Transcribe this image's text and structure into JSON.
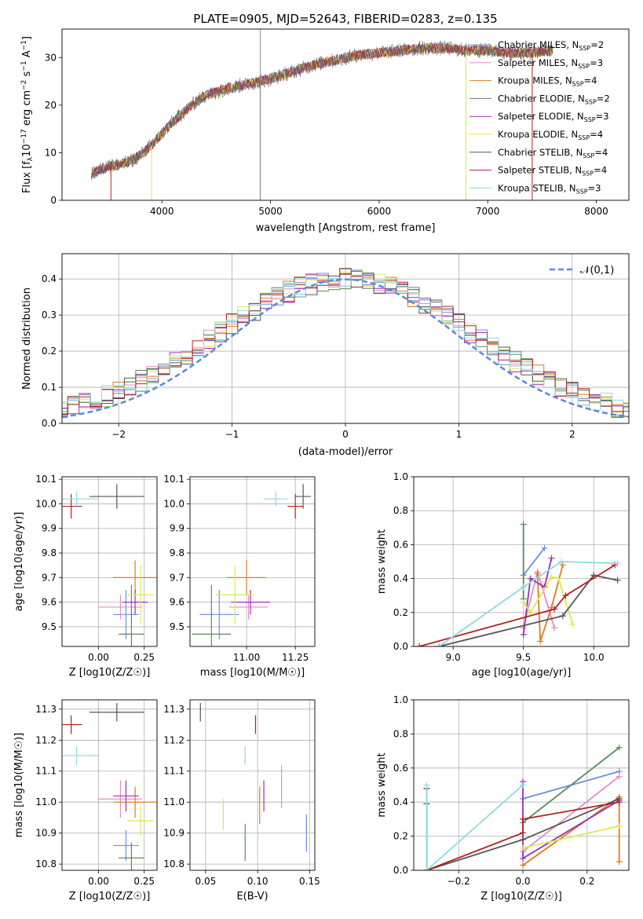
{
  "figure_title": "PLATE=0905, MJD=52643, FIBERID=0283, z=0.135",
  "colors": {
    "chab_miles": "#6a8fe0",
    "salp_miles": "#e58bc7",
    "krou_miles": "#e07b1a",
    "chab_elodie": "#5a8a5a",
    "salp_elodie": "#9c2fb5",
    "krou_elodie": "#d7ea53",
    "chab_stelib": "#555555",
    "salp_stelib": "#b22222",
    "krou_stelib": "#8ddbe3",
    "gauss": "#5b8bd6"
  },
  "chart_data": [
    {
      "id": "spectrum",
      "type": "line",
      "title": "PLATE=0905, MJD=52643, FIBERID=0283, z=0.135",
      "xlabel": "wavelength [Angstrom, rest frame]",
      "ylabel": "Flux [f_λ 10^-17 erg cm^-2 s^-1 A^-1]",
      "xlim": [
        3080,
        8300
      ],
      "ylim": [
        0,
        36
      ],
      "xticks": [
        4000,
        5000,
        6000,
        7000,
        8000
      ],
      "yticks": [
        0,
        10,
        20,
        30
      ],
      "continuum": {
        "x": [
          3350,
          3500,
          3600,
          3700,
          3800,
          3900,
          4000,
          4100,
          4200,
          4300,
          4400,
          4600,
          4800,
          5000,
          5200,
          5400,
          5600,
          5800,
          6000,
          6200,
          6400,
          6600,
          6800,
          7000,
          7200,
          7400,
          7600
        ],
        "y": [
          5.5,
          7.2,
          7.5,
          8.0,
          9.5,
          11.5,
          14.0,
          16.5,
          18.5,
          20.5,
          22.0,
          23.5,
          24.5,
          25.5,
          27.0,
          28.5,
          29.5,
          30.5,
          31.0,
          31.5,
          32.0,
          32.0,
          31.5,
          31.5,
          31.0,
          31.0,
          31.5
        ]
      },
      "legend": [
        "Chabrier MILES, N_SSP=2",
        "Salpeter MILES, N_SSP=3",
        "Kroupa MILES, N_SSP=4",
        "Chabrier ELODIE, N_SSP=2",
        "Salpeter ELODIE, N_SSP=3",
        "Kroupa ELODIE, N_SSP=4",
        "Chabrier STELIB, N_SSP=4",
        "Salpeter STELIB, N_SSP=4",
        "Kroupa STELIB, N_SSP=3"
      ],
      "legend_position": "upper-right"
    },
    {
      "id": "residuals",
      "type": "histogram",
      "xlabel": "(data-model)/error",
      "ylabel": "Normed distribution",
      "xlim": [
        -2.5,
        2.5
      ],
      "ylim": [
        0,
        0.47
      ],
      "xticks": [
        -2,
        -1,
        0,
        1,
        2
      ],
      "yticks": [
        0.0,
        0.1,
        0.2,
        0.3,
        0.4
      ],
      "grid": true,
      "gaussian_label": "𝒩(0,1)",
      "legend_position": "upper-right"
    },
    {
      "id": "age_vs_Z",
      "type": "errorbar",
      "xlabel": "Z [log10(Z/Z☉)]",
      "ylabel": "age [log10(age/yr)]",
      "xlim": [
        -0.2,
        0.32
      ],
      "ylim": [
        9.42,
        10.11
      ],
      "xticks": [
        0.0,
        0.25
      ],
      "yticks": [
        9.5,
        9.6,
        9.7,
        9.8,
        9.9,
        10.0,
        10.1
      ],
      "points": [
        {
          "m": "chab_miles",
          "x": 0.15,
          "y": 9.55,
          "ex": 0.07,
          "ey": 0.1
        },
        {
          "m": "salp_miles",
          "x": 0.12,
          "y": 9.58,
          "ex": 0.12,
          "ey": 0.05
        },
        {
          "m": "krou_miles",
          "x": 0.2,
          "y": 9.7,
          "ex": 0.12,
          "ey": 0.07
        },
        {
          "m": "chab_elodie",
          "x": 0.18,
          "y": 9.47,
          "ex": 0.07,
          "ey": 0.2
        },
        {
          "m": "salp_elodie",
          "x": 0.2,
          "y": 9.6,
          "ex": 0.07,
          "ey": 0.05
        },
        {
          "m": "krou_elodie",
          "x": 0.23,
          "y": 9.63,
          "ex": 0.07,
          "ey": 0.12
        },
        {
          "m": "chab_stelib",
          "x": 0.1,
          "y": 10.03,
          "ex": 0.15,
          "ey": 0.05
        },
        {
          "m": "salp_stelib",
          "x": -0.15,
          "y": 9.99,
          "ex": 0.06,
          "ey": 0.05
        },
        {
          "m": "krou_stelib",
          "x": -0.12,
          "y": 10.02,
          "ex": 0.12,
          "ey": 0.03
        }
      ]
    },
    {
      "id": "age_vs_mass",
      "type": "errorbar",
      "xlabel": "mass [log10(M/M☉)]",
      "xlim": [
        10.71,
        11.35
      ],
      "ylim": [
        9.42,
        10.11
      ],
      "xticks": [
        11.0,
        11.25
      ],
      "yticks": [
        9.5,
        9.6,
        9.7,
        9.8,
        9.9,
        10.0,
        10.1
      ],
      "points": [
        {
          "m": "chab_miles",
          "x": 10.86,
          "y": 9.55,
          "ex": 0.1,
          "ey": 0.1
        },
        {
          "m": "salp_miles",
          "x": 11.01,
          "y": 9.58,
          "ex": 0.1,
          "ey": 0.05
        },
        {
          "m": "krou_miles",
          "x": 11.0,
          "y": 9.7,
          "ex": 0.1,
          "ey": 0.07
        },
        {
          "m": "chab_elodie",
          "x": 10.82,
          "y": 9.47,
          "ex": 0.1,
          "ey": 0.2
        },
        {
          "m": "salp_elodie",
          "x": 11.02,
          "y": 9.6,
          "ex": 0.1,
          "ey": 0.05
        },
        {
          "m": "krou_elodie",
          "x": 10.94,
          "y": 9.63,
          "ex": 0.1,
          "ey": 0.12
        },
        {
          "m": "chab_stelib",
          "x": 11.29,
          "y": 10.03,
          "ex": 0.04,
          "ey": 0.05
        },
        {
          "m": "salp_stelib",
          "x": 11.25,
          "y": 9.99,
          "ex": 0.04,
          "ey": 0.05
        },
        {
          "m": "krou_stelib",
          "x": 11.15,
          "y": 10.02,
          "ex": 0.06,
          "ey": 0.03
        }
      ]
    },
    {
      "id": "weight_vs_age",
      "type": "line",
      "xlabel": "age [log10(age/yr)]",
      "ylabel": "mass weight",
      "xlim": [
        8.72,
        10.25
      ],
      "ylim": [
        0,
        1.0
      ],
      "xticks": [
        9.0,
        9.5,
        10.0
      ],
      "yticks": [
        0.0,
        0.2,
        0.4,
        0.6,
        0.8,
        1.0
      ],
      "series": [
        {
          "m": "chab_miles",
          "x": [
            9.5,
            9.65
          ],
          "y": [
            0.42,
            0.58
          ]
        },
        {
          "m": "salp_miles",
          "x": [
            9.5,
            9.6,
            9.72
          ],
          "y": [
            0.11,
            0.44,
            0.11
          ]
        },
        {
          "m": "krou_miles",
          "x": [
            9.6,
            9.62,
            9.7,
            9.78
          ],
          "y": [
            0.43,
            0.03,
            0.23,
            0.48
          ]
        },
        {
          "m": "chab_elodie",
          "x": [
            9.5,
            9.5
          ],
          "y": [
            0.28,
            0.72
          ]
        },
        {
          "m": "salp_elodie",
          "x": [
            9.5,
            9.55,
            9.65,
            9.7
          ],
          "y": [
            0.07,
            0.4,
            0.35,
            0.52
          ]
        },
        {
          "m": "krou_elodie",
          "x": [
            9.5,
            9.55,
            9.7,
            9.75,
            9.85
          ],
          "y": [
            0.26,
            0.2,
            0.41,
            0.4,
            0.13
          ]
        },
        {
          "m": "chab_stelib",
          "x": [
            8.9,
            9.78,
            10.0,
            10.17
          ],
          "y": [
            0.0,
            0.18,
            0.42,
            0.39
          ]
        },
        {
          "m": "salp_stelib",
          "x": [
            8.76,
            9.72,
            9.8,
            10.15
          ],
          "y": [
            0.0,
            0.22,
            0.3,
            0.48
          ]
        },
        {
          "m": "krou_stelib",
          "x": [
            8.9,
            9.5,
            9.77,
            10.17
          ],
          "y": [
            0.0,
            0.35,
            0.5,
            0.49
          ]
        }
      ]
    },
    {
      "id": "mass_vs_Z",
      "type": "errorbar",
      "xlabel": "Z [log10(Z/Z☉)]",
      "ylabel": "mass [log10(M/M☉)]",
      "xlim": [
        -0.2,
        0.32
      ],
      "ylim": [
        10.78,
        11.33
      ],
      "xticks": [
        0.0,
        0.25
      ],
      "yticks": [
        10.8,
        10.9,
        11.0,
        11.1,
        11.2,
        11.3
      ],
      "points": [
        {
          "m": "chab_miles",
          "x": 0.15,
          "y": 10.86,
          "ex": 0.07,
          "ey": 0.05
        },
        {
          "m": "salp_miles",
          "x": 0.12,
          "y": 11.01,
          "ex": 0.12,
          "ey": 0.06
        },
        {
          "m": "krou_miles",
          "x": 0.2,
          "y": 11.0,
          "ex": 0.12,
          "ey": 0.05
        },
        {
          "m": "chab_elodie",
          "x": 0.18,
          "y": 10.82,
          "ex": 0.07,
          "ey": 0.05
        },
        {
          "m": "salp_elodie",
          "x": 0.15,
          "y": 11.02,
          "ex": 0.07,
          "ey": 0.05
        },
        {
          "m": "krou_elodie",
          "x": 0.23,
          "y": 10.94,
          "ex": 0.07,
          "ey": 0.05
        },
        {
          "m": "chab_stelib",
          "x": 0.1,
          "y": 11.29,
          "ex": 0.15,
          "ey": 0.03
        },
        {
          "m": "salp_stelib",
          "x": -0.15,
          "y": 11.25,
          "ex": 0.06,
          "ey": 0.03
        },
        {
          "m": "krou_stelib",
          "x": -0.12,
          "y": 11.15,
          "ex": 0.12,
          "ey": 0.03
        }
      ]
    },
    {
      "id": "mass_vs_ebv",
      "type": "errorbar",
      "xlabel": "E(B-V)",
      "xlim": [
        0.035,
        0.155
      ],
      "ylim": [
        10.78,
        11.33
      ],
      "xticks": [
        0.05,
        0.1,
        0.15
      ],
      "yticks": [
        10.8,
        10.9,
        11.0,
        11.1,
        11.2,
        11.3
      ],
      "points": [
        {
          "m": "chab_miles",
          "x": 0.147,
          "y": 10.9,
          "ex": 0,
          "ey": 0.06
        },
        {
          "m": "salp_miles",
          "x": 0.123,
          "y": 11.05,
          "ex": 0,
          "ey": 0.07
        },
        {
          "m": "krou_miles",
          "x": 0.102,
          "y": 10.99,
          "ex": 0,
          "ey": 0.06
        },
        {
          "m": "chab_elodie",
          "x": 0.088,
          "y": 10.87,
          "ex": 0,
          "ey": 0.06
        },
        {
          "m": "salp_elodie",
          "x": 0.106,
          "y": 11.02,
          "ex": 0,
          "ey": 0.05
        },
        {
          "m": "krou_elodie",
          "x": 0.067,
          "y": 10.96,
          "ex": 0,
          "ey": 0.05
        },
        {
          "m": "chab_stelib",
          "x": 0.045,
          "y": 11.29,
          "ex": 0,
          "ey": 0.03
        },
        {
          "m": "salp_stelib",
          "x": 0.098,
          "y": 11.25,
          "ex": 0,
          "ey": 0.03
        },
        {
          "m": "krou_stelib",
          "x": 0.088,
          "y": 11.15,
          "ex": 0,
          "ey": 0.03
        }
      ]
    },
    {
      "id": "weight_vs_Z",
      "type": "line",
      "xlabel": "Z [log10(Z/Z☉)]",
      "ylabel": "mass weight",
      "xlim": [
        -0.34,
        0.33
      ],
      "ylim": [
        0,
        1.0
      ],
      "xticks": [
        -0.2,
        0.0,
        0.2
      ],
      "yticks": [
        0.0,
        0.2,
        0.4,
        0.6,
        0.8,
        1.0
      ],
      "series": [
        {
          "m": "chab_miles",
          "x": [
            0.0,
            0.3
          ],
          "y": [
            0.42,
            0.58
          ]
        },
        {
          "m": "salp_miles",
          "x": [
            0.0,
            0.3
          ],
          "y": [
            0.11,
            0.55
          ]
        },
        {
          "m": "krou_miles",
          "x": [
            0.0,
            0.3,
            0.3
          ],
          "y": [
            0.03,
            0.43,
            0.05
          ]
        },
        {
          "m": "chab_elodie",
          "x": [
            0.0,
            0.3
          ],
          "y": [
            0.28,
            0.72
          ]
        },
        {
          "m": "salp_elodie",
          "x": [
            0.0,
            0.0,
            0.3
          ],
          "y": [
            0.52,
            0.07,
            0.41
          ]
        },
        {
          "m": "krou_elodie",
          "x": [
            0.0,
            0.3
          ],
          "y": [
            0.13,
            0.26
          ]
        },
        {
          "m": "chab_stelib",
          "x": [
            -0.3,
            -0.3,
            0.0,
            0.3
          ],
          "y": [
            0.39,
            0.0,
            0.18,
            0.42
          ]
        },
        {
          "m": "salp_stelib",
          "x": [
            -0.3,
            -0.3,
            0.0,
            0.0,
            0.3
          ],
          "y": [
            0.48,
            0.0,
            0.22,
            0.3,
            0.4
          ]
        },
        {
          "m": "krou_stelib",
          "x": [
            -0.3,
            -0.3,
            0.0
          ],
          "y": [
            0.5,
            0.0,
            0.5
          ]
        }
      ]
    }
  ]
}
